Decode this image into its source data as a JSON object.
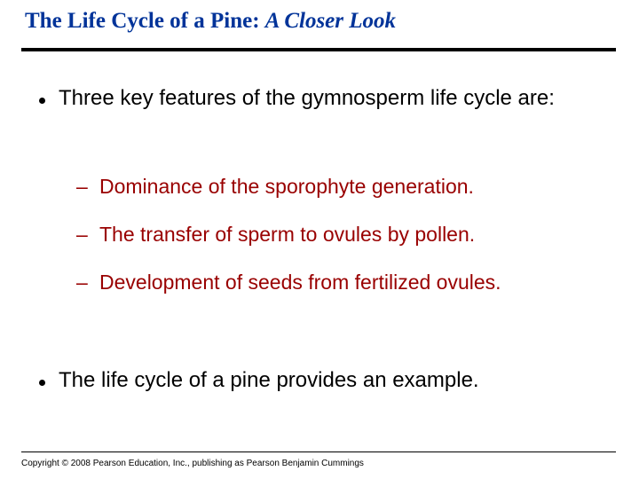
{
  "title": {
    "main": "The Life Cycle of a Pine: ",
    "sub": "A Closer Look",
    "color": "#003399",
    "fontsize": 25
  },
  "intro": "Three key features of the gymnosperm life cycle are:",
  "features": [
    "Dominance of the sporophyte generation.",
    "The transfer of sperm to ovules by pollen.",
    "Development of seeds from fertilized ovules."
  ],
  "example": "The life cycle of a pine provides an example.",
  "copyright": "Copyright © 2008 Pearson Education, Inc., publishing as Pearson Benjamin Cummings",
  "style": {
    "body_fontsize": 24,
    "sub_fontsize": 23,
    "body_color": "#000000",
    "sub_color": "#990000",
    "rule_color": "#000000",
    "background": "#ffffff"
  }
}
